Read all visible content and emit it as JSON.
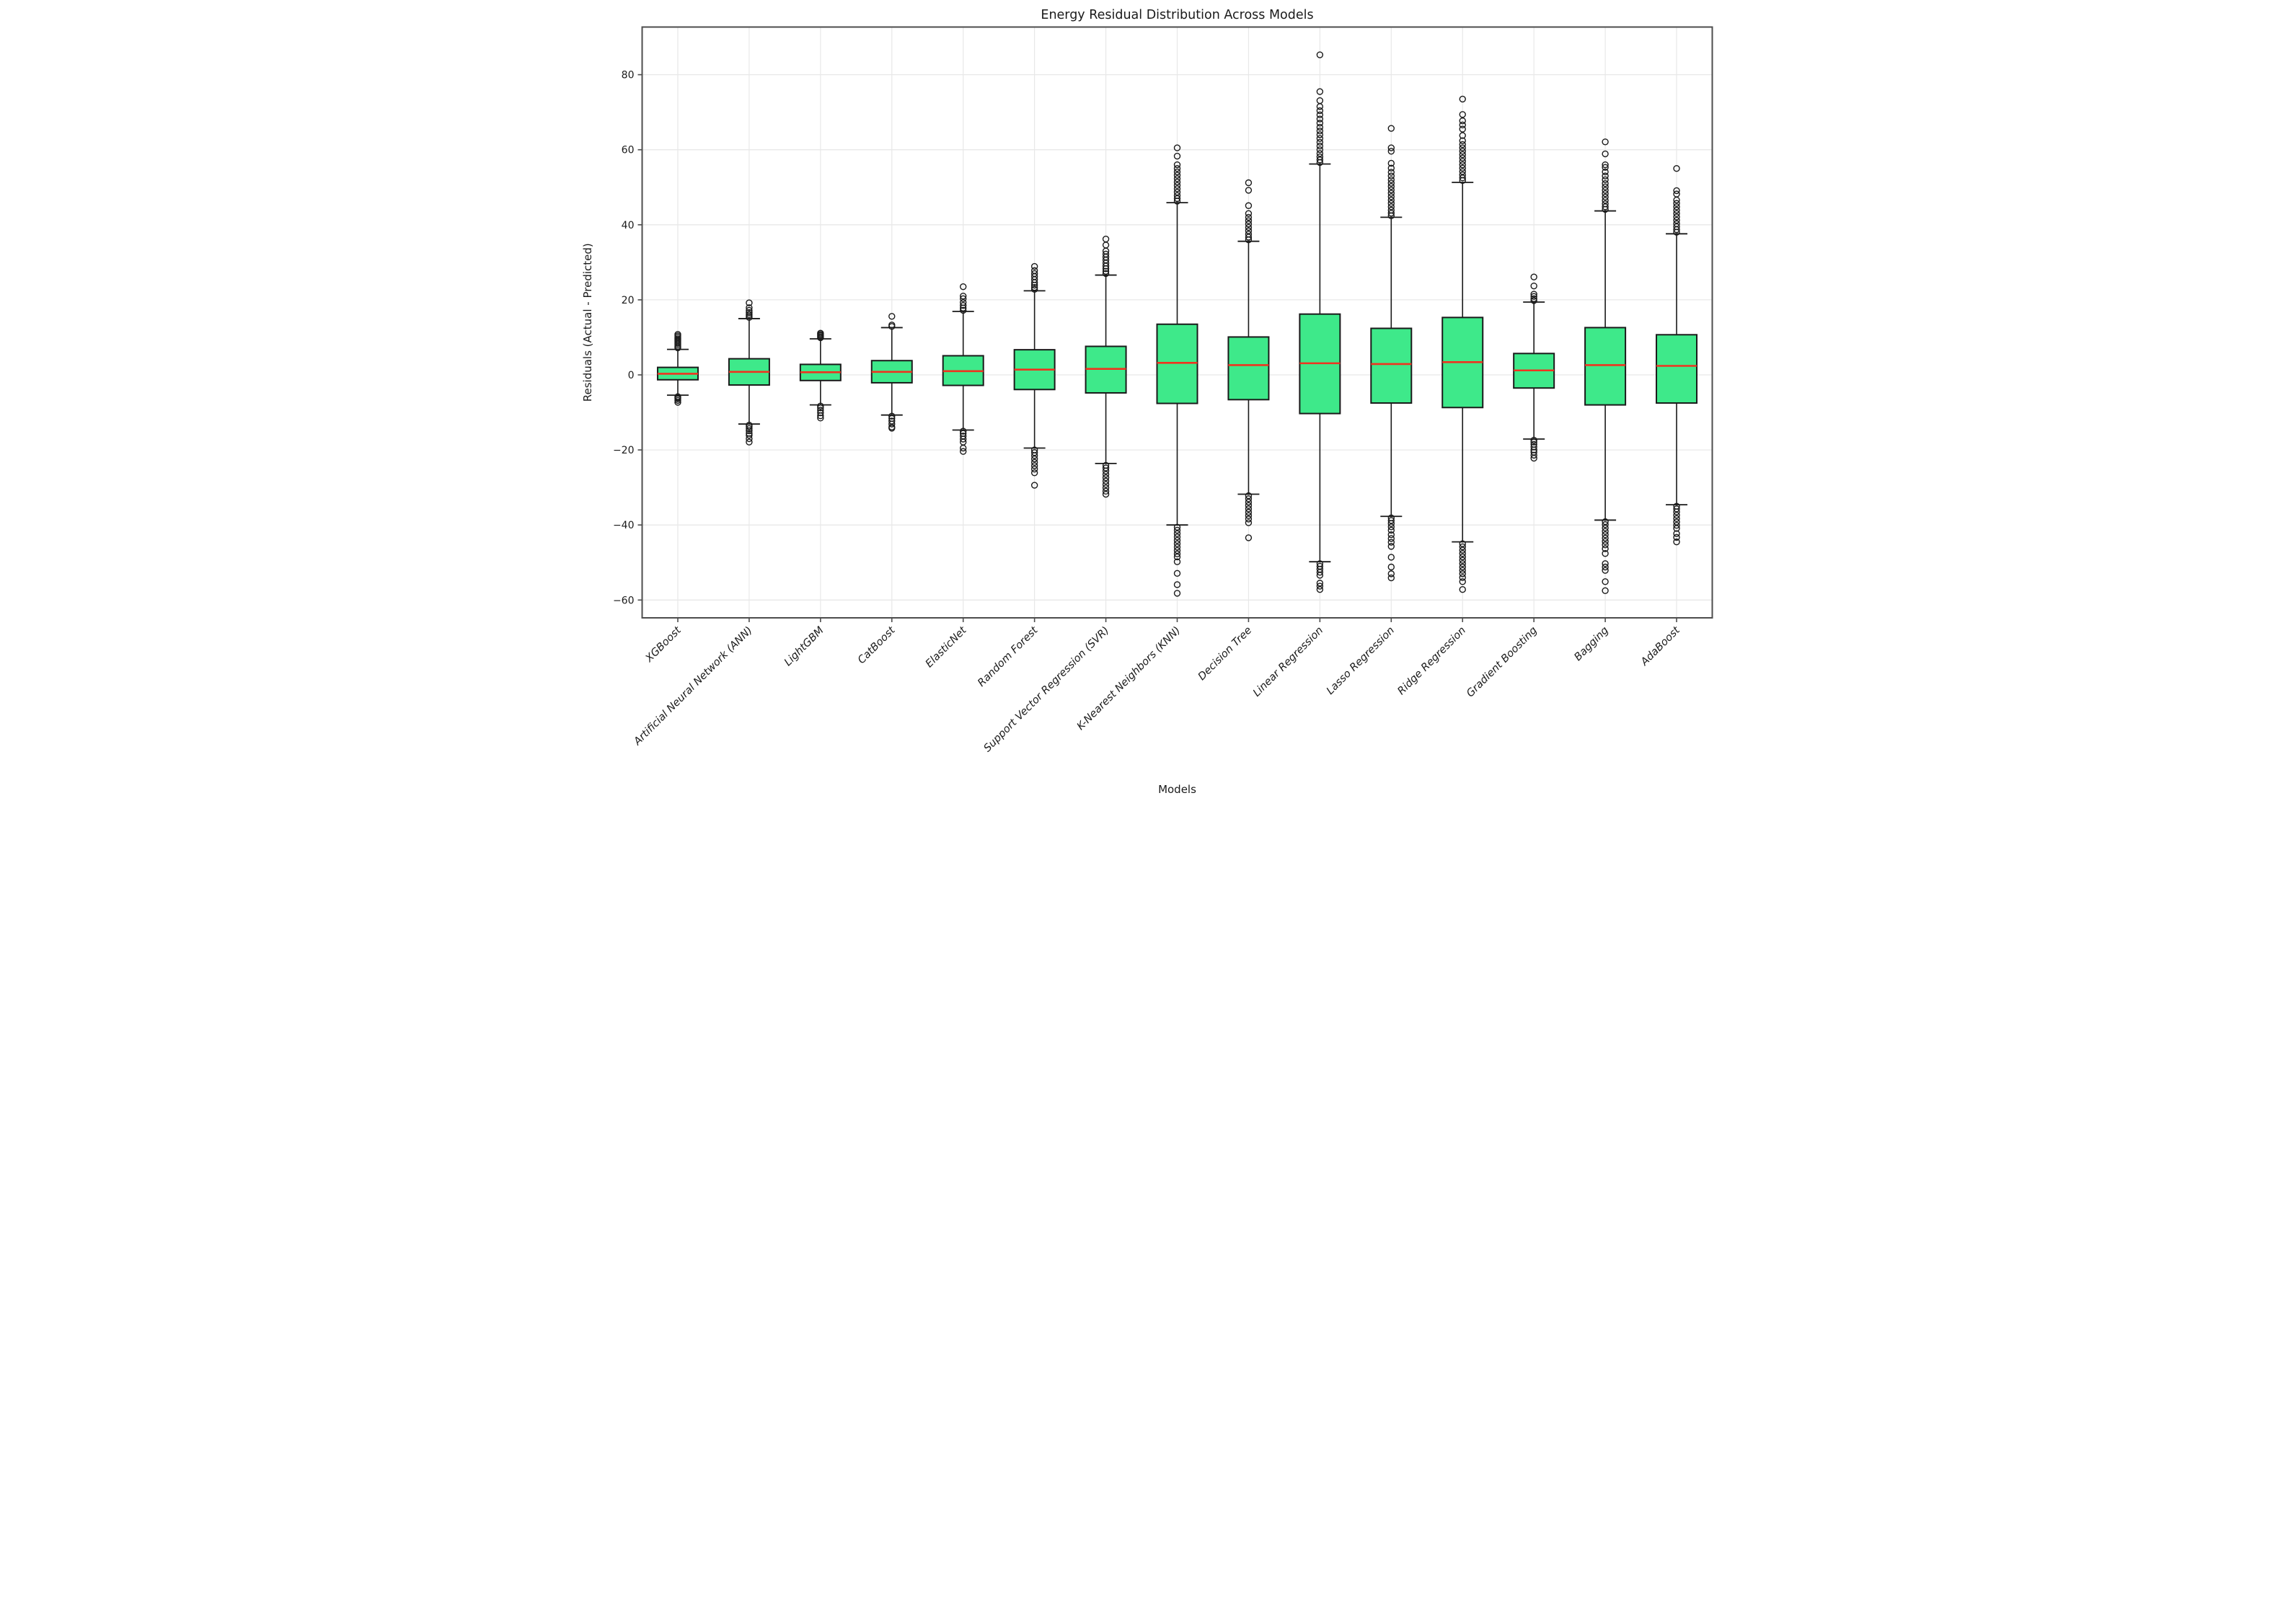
{
  "title": "Energy Residual Distribution Across Models",
  "axes": {
    "xlabel": "Models",
    "ylabel": "Residuals (Actual - Predicted)",
    "y_ticks": [
      80,
      60,
      40,
      20,
      0,
      -20,
      -40,
      -60
    ],
    "ylim": [
      -64.7,
      92.6
    ],
    "grid": "on",
    "x_tick_rotation_deg": 45,
    "x_tick_style": "italic"
  },
  "style": {
    "background": "#ffffff",
    "box_fill": "#3ee98a",
    "box_edge": "#1a1a1a",
    "median_color": "#f0331f",
    "whisker_color": "#1a1a1a",
    "flier_edge": "#1a1a1a",
    "grid_color": "#e8e8e8",
    "spine_color": "#4d4d4d",
    "tick_color": "#4d4d4d",
    "text_color": "#1a1a1a"
  },
  "chart_data": {
    "type": "boxplot",
    "title": "Energy Residual Distribution Across Models",
    "xlabel": "Models",
    "ylabel": "Residuals (Actual - Predicted)",
    "ylim": [
      -64.7,
      92.6
    ],
    "legend": "none",
    "categories": [
      "XGBoost",
      "Artificial Neural Network (ANN)",
      "LightGBM",
      "CatBoost",
      "ElasticNet",
      "Random Forest",
      "Support Vector Regression (SVR)",
      "K-Nearest Neighbors (KNN)",
      "Decision Tree",
      "Linear Regression",
      "Lasso Regression",
      "Ridge Regression",
      "Gradient Boosting",
      "Bagging",
      "AdaBoost"
    ],
    "series": [
      {
        "label": "XGBoost",
        "whislo": -5.4,
        "q1": -1.3,
        "med": 0.3,
        "q3": 2.0,
        "whishi": 6.8,
        "fliers_high": [
          7.2,
          7.6,
          8.0,
          8.4,
          8.8,
          9.2,
          9.6,
          10.0,
          10.4,
          10.8
        ],
        "fliers_low": [
          -5.8,
          -6.1,
          -6.4,
          -6.8,
          -7.3
        ]
      },
      {
        "label": "Artificial Neural Network (ANN)",
        "whislo": -13.1,
        "q1": -2.7,
        "med": 0.8,
        "q3": 4.3,
        "whishi": 15.0,
        "fliers_high": [
          15.3,
          15.7,
          16.1,
          16.6,
          17.2,
          17.9,
          19.2
        ],
        "fliers_low": [
          -13.4,
          -13.8,
          -14.3,
          -14.9,
          -15.6,
          -16.1,
          -17.0,
          -17.9
        ]
      },
      {
        "label": "LightGBM",
        "whislo": -8.0,
        "q1": -1.5,
        "med": 0.7,
        "q3": 2.8,
        "whishi": 9.6,
        "fliers_high": [
          9.9,
          10.2,
          10.5,
          10.8,
          11.1
        ],
        "fliers_low": [
          -8.3,
          -8.8,
          -9.4,
          -10.1,
          -10.9,
          -11.5
        ]
      },
      {
        "label": "CatBoost",
        "whislo": -10.7,
        "q1": -2.1,
        "med": 0.8,
        "q3": 3.8,
        "whishi": 12.6,
        "fliers_high": [
          12.9,
          13.3,
          15.6
        ],
        "fliers_low": [
          -11.0,
          -11.6,
          -12.3,
          -13.1,
          -13.9,
          -14.2
        ]
      },
      {
        "label": "ElasticNet",
        "whislo": -14.7,
        "q1": -2.8,
        "med": 1.0,
        "q3": 5.1,
        "whishi": 16.9,
        "fliers_high": [
          17.2,
          17.8,
          18.5,
          19.3,
          20.3,
          21.0,
          23.5
        ],
        "fliers_low": [
          -15.0,
          -15.6,
          -16.3,
          -17.1,
          -17.9,
          -19.5,
          -20.4
        ]
      },
      {
        "label": "Random Forest",
        "whislo": -19.5,
        "q1": -3.9,
        "med": 1.4,
        "q3": 6.7,
        "whishi": 22.4,
        "fliers_high": [
          22.8,
          23.3,
          23.9,
          24.6,
          25.4,
          26.2,
          27.0,
          27.8,
          28.9
        ],
        "fliers_low": [
          -20.0,
          -20.7,
          -21.5,
          -22.4,
          -23.3,
          -24.2,
          -25.1,
          -26.1,
          -29.4
        ]
      },
      {
        "label": "Support Vector Regression (SVR)",
        "whislo": -23.6,
        "q1": -4.8,
        "med": 1.6,
        "q3": 7.6,
        "whishi": 26.6,
        "fliers_high": [
          27.0,
          27.6,
          28.3,
          29.0,
          29.8,
          30.6,
          31.4,
          32.2,
          33.0,
          34.6,
          36.2
        ],
        "fliers_low": [
          -24.1,
          -24.8,
          -25.6,
          -26.5,
          -27.4,
          -28.3,
          -29.2,
          -30.1,
          -31.0,
          -31.8
        ]
      },
      {
        "label": "K-Nearest Neighbors (KNN)",
        "whislo": -40.0,
        "q1": -7.6,
        "med": 3.2,
        "q3": 13.5,
        "whishi": 45.9,
        "fliers_high": [
          46.3,
          47.0,
          47.8,
          48.7,
          49.6,
          50.5,
          51.4,
          52.3,
          53.2,
          54.1,
          55.0,
          56.0,
          58.3,
          60.5
        ],
        "fliers_low": [
          -40.6,
          -41.4,
          -42.3,
          -43.2,
          -44.1,
          -45.0,
          -45.9,
          -46.8,
          -47.7,
          -48.5,
          -49.8,
          -52.9,
          -55.9,
          -58.2
        ]
      },
      {
        "label": "Decision Tree",
        "whislo": -31.8,
        "q1": -6.6,
        "med": 2.6,
        "q3": 10.1,
        "whishi": 35.6,
        "fliers_high": [
          36.0,
          36.7,
          37.5,
          38.4,
          39.3,
          40.2,
          41.1,
          42.0,
          43.0,
          45.1,
          49.2,
          51.2
        ],
        "fliers_low": [
          -32.2,
          -33.0,
          -33.9,
          -34.8,
          -35.7,
          -36.6,
          -37.5,
          -38.4,
          -39.4,
          -43.4
        ]
      },
      {
        "label": "Linear Regression",
        "whislo": -49.8,
        "q1": -10.3,
        "med": 3.1,
        "q3": 16.2,
        "whishi": 56.2,
        "fliers_high": [
          56.6,
          57.3,
          58.1,
          59.0,
          60.0,
          61.0,
          62.0,
          63.0,
          64.0,
          65.0,
          66.0,
          67.1,
          68.2,
          69.3,
          70.4,
          71.5,
          73.1,
          75.5,
          85.3
        ],
        "fliers_low": [
          -50.3,
          -51.0,
          -51.8,
          -52.6,
          -53.4,
          -55.5,
          -56.3,
          -57.2
        ]
      },
      {
        "label": "Lasso Regression",
        "whislo": -37.7,
        "q1": -7.5,
        "med": 2.9,
        "q3": 12.4,
        "whishi": 42.0,
        "fliers_high": [
          42.4,
          43.1,
          43.9,
          44.8,
          45.7,
          46.6,
          47.5,
          48.4,
          49.3,
          50.2,
          51.1,
          52.0,
          53.0,
          54.0,
          55.1,
          56.4,
          59.6,
          60.5,
          65.7
        ],
        "fliers_low": [
          -38.1,
          -38.8,
          -39.6,
          -40.5,
          -41.4,
          -42.6,
          -43.6,
          -44.6,
          -45.7,
          -48.6,
          -51.2,
          -53.0,
          -54.1
        ]
      },
      {
        "label": "Ridge Regression",
        "whislo": -44.5,
        "q1": -8.7,
        "med": 3.4,
        "q3": 15.3,
        "whishi": 51.3,
        "fliers_high": [
          51.8,
          52.5,
          53.3,
          54.2,
          55.1,
          56.0,
          56.9,
          57.8,
          58.7,
          59.6,
          60.5,
          61.4,
          62.4,
          63.8,
          65.5,
          66.6,
          67.7,
          69.4,
          73.5
        ],
        "fliers_low": [
          -45.0,
          -45.8,
          -46.7,
          -47.6,
          -48.5,
          -49.4,
          -50.3,
          -51.2,
          -52.1,
          -53.0,
          -54.0,
          -55.1,
          -57.2
        ]
      },
      {
        "label": "Gradient Boosting",
        "whislo": -17.1,
        "q1": -3.5,
        "med": 1.2,
        "q3": 5.7,
        "whishi": 19.4,
        "fliers_high": [
          19.8,
          20.3,
          20.9,
          21.5,
          23.7,
          26.1
        ],
        "fliers_low": [
          -17.4,
          -17.9,
          -18.5,
          -19.2,
          -20.0,
          -20.6,
          -21.4,
          -22.2
        ]
      },
      {
        "label": "Bagging",
        "whislo": -38.7,
        "q1": -8.0,
        "med": 2.6,
        "q3": 12.6,
        "whishi": 43.7,
        "fliers_high": [
          44.1,
          44.8,
          45.6,
          46.5,
          47.4,
          48.3,
          49.2,
          50.1,
          51.0,
          52.0,
          53.0,
          54.1,
          55.3,
          56.0,
          58.9,
          62.1
        ],
        "fliers_low": [
          -39.1,
          -39.9,
          -40.8,
          -41.7,
          -42.6,
          -43.5,
          -44.4,
          -45.3,
          -46.3,
          -47.6,
          -50.3,
          -51.2,
          -52.1,
          -55.1,
          -57.5
        ]
      },
      {
        "label": "AdaBoost",
        "whislo": -34.6,
        "q1": -7.5,
        "med": 2.4,
        "q3": 10.7,
        "whishi": 37.6,
        "fliers_high": [
          38.0,
          38.7,
          39.5,
          40.3,
          41.2,
          42.1,
          43.0,
          43.9,
          44.8,
          45.7,
          46.6,
          48.2,
          49.1,
          55.0
        ],
        "fliers_low": [
          -35.0,
          -35.7,
          -36.5,
          -37.4,
          -38.3,
          -39.2,
          -40.1,
          -40.9,
          -42.3,
          -43.3,
          -44.5
        ]
      }
    ]
  }
}
